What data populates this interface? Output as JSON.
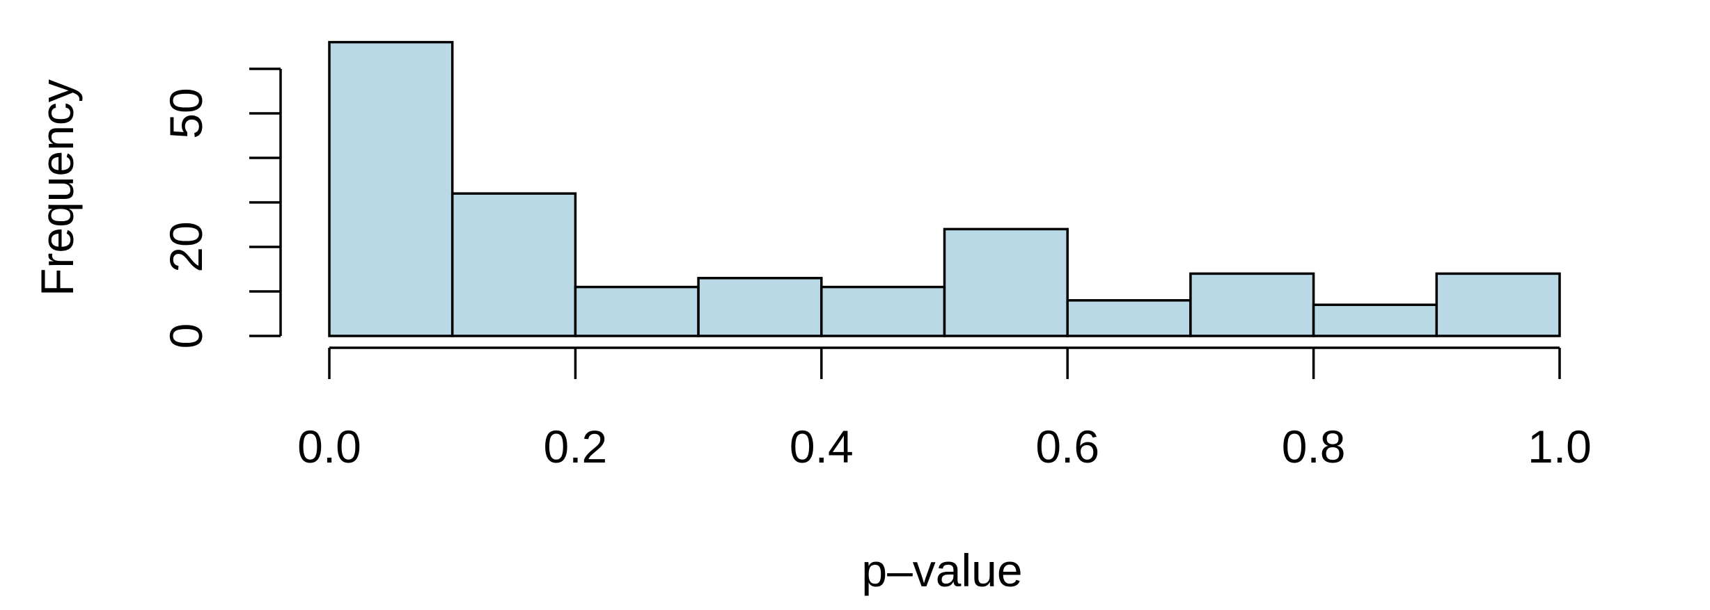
{
  "chart_data": {
    "type": "bar",
    "subtype": "histogram",
    "title": "",
    "xlabel": "p–value",
    "ylabel": "Frequency",
    "bins": [
      [
        0.0,
        0.1
      ],
      [
        0.1,
        0.2
      ],
      [
        0.2,
        0.3
      ],
      [
        0.3,
        0.4
      ],
      [
        0.4,
        0.5
      ],
      [
        0.5,
        0.6
      ],
      [
        0.6,
        0.7
      ],
      [
        0.7,
        0.8
      ],
      [
        0.8,
        0.9
      ],
      [
        0.9,
        1.0
      ]
    ],
    "values": [
      66,
      32,
      11,
      13,
      11,
      24,
      8,
      14,
      7,
      14
    ],
    "xlim": [
      0.0,
      1.0
    ],
    "ylim": [
      0,
      60
    ],
    "x_ticks": [
      0.0,
      0.2,
      0.4,
      0.6,
      0.8,
      1.0
    ],
    "x_tick_labels": [
      "0.0",
      "0.2",
      "0.4",
      "0.6",
      "0.8",
      "1.0"
    ],
    "y_ticks": [
      0,
      10,
      20,
      30,
      40,
      50,
      60
    ],
    "y_tick_labels": [
      "0",
      "",
      "20",
      "",
      "",
      "50",
      ""
    ],
    "bar_color": "#b8d9e5",
    "edge_color": "#000000",
    "grid": false,
    "legend": "none"
  }
}
